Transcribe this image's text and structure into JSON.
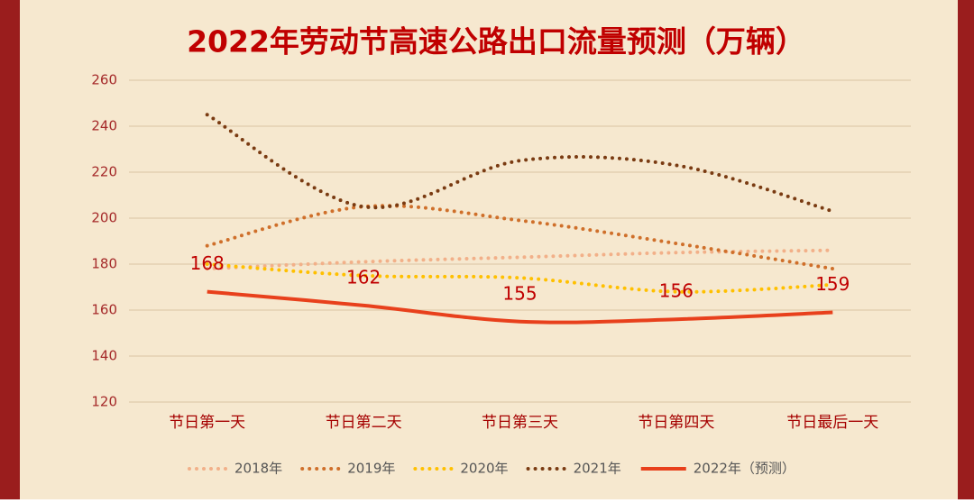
{
  "chart_data": {
    "type": "line",
    "title": "2022年劳动节高速公路出口流量预测（万辆）",
    "categories": [
      "节日第一天",
      "节日第二天",
      "节日第三天",
      "节日第四天",
      "节日最后一天"
    ],
    "series": [
      {
        "name": "2018年",
        "color": "#f2b089",
        "style": "dotted",
        "values": [
          178,
          181,
          183,
          185,
          186
        ]
      },
      {
        "name": "2019年",
        "color": "#cf6f2a",
        "style": "dotted",
        "values": [
          188,
          205,
          199,
          189,
          178
        ]
      },
      {
        "name": "2020年",
        "color": "#ffc000",
        "style": "dotted",
        "values": [
          180,
          175,
          174,
          168,
          171
        ]
      },
      {
        "name": "2021年",
        "color": "#7a3b12",
        "style": "dotted",
        "values": [
          245,
          205,
          225,
          223,
          203
        ]
      },
      {
        "name": "2022年（预测）",
        "color": "#e8401c",
        "style": "solid",
        "values": [
          168,
          162,
          155,
          156,
          159
        ],
        "data_labels": true
      }
    ],
    "ylim": [
      120,
      260
    ],
    "yticks": [
      120,
      140,
      160,
      180,
      200,
      220,
      240,
      260
    ],
    "grid": true,
    "smooth": true
  }
}
